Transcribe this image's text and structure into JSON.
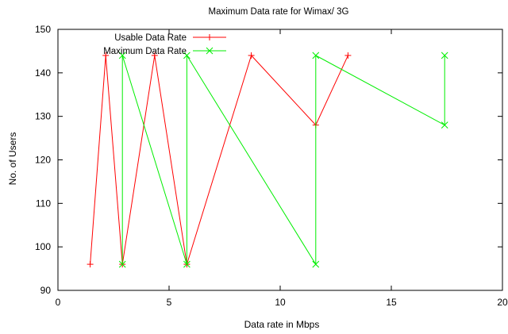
{
  "chart_data": {
    "type": "line",
    "title": "Maximum Data rate for Wimax/ 3G",
    "xlabel": "Data rate in Mbps",
    "ylabel": "No. of Users",
    "xlim": [
      0,
      20
    ],
    "ylim": [
      90,
      150
    ],
    "xticks": [
      0,
      5,
      10,
      15,
      20
    ],
    "yticks": [
      90,
      100,
      110,
      120,
      130,
      140,
      150
    ],
    "grid": false,
    "legend_position": "top-left",
    "series": [
      {
        "name": "Usable Data Rate",
        "color": "#ff0000",
        "marker": "plus",
        "x": [
          1.45,
          2.15,
          2.9,
          4.35,
          5.8,
          8.7,
          11.6,
          13.05
        ],
        "y": [
          96,
          144,
          96,
          144,
          96,
          144,
          128,
          144
        ]
      },
      {
        "name": "Maximum Data Rate",
        "color": "#00ee00",
        "marker": "cross",
        "x": [
          2.9,
          2.9,
          5.8,
          5.8,
          11.6,
          11.6,
          17.4,
          17.4
        ],
        "y": [
          96,
          144,
          96,
          144,
          96,
          144,
          128,
          144
        ]
      }
    ]
  }
}
